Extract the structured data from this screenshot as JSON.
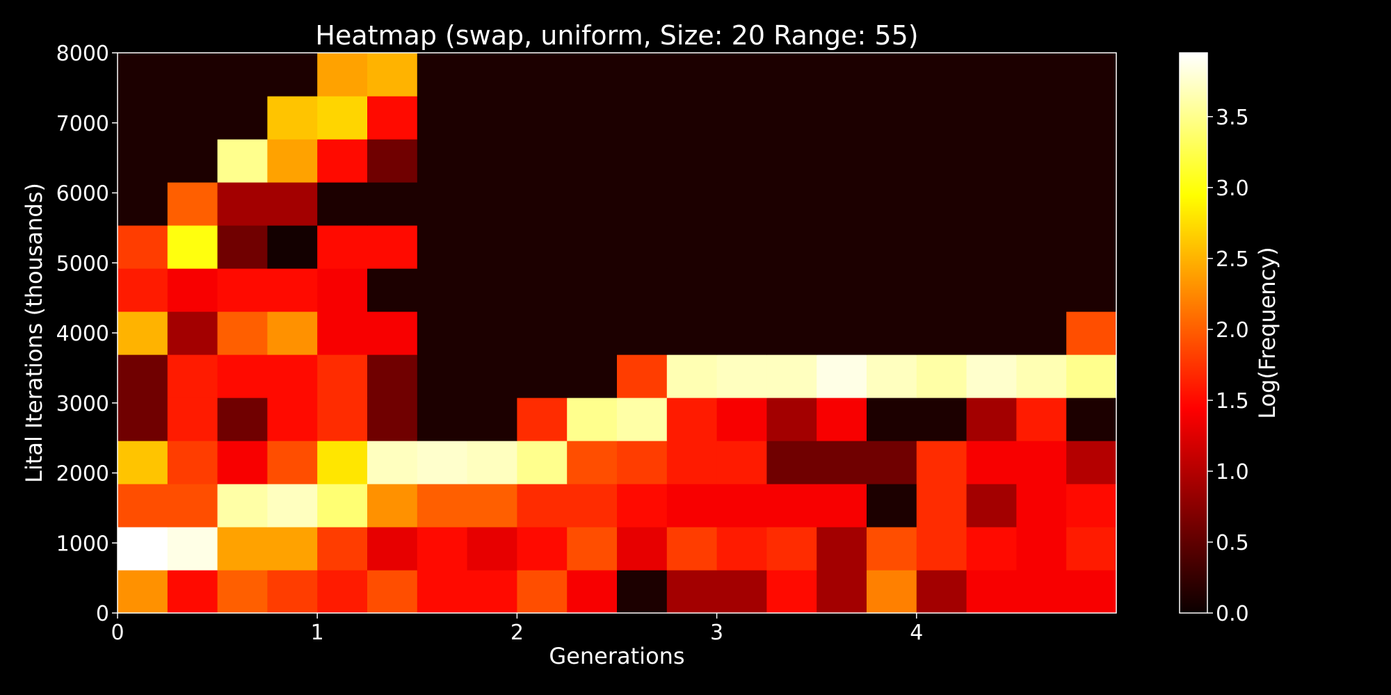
{
  "chart_data": {
    "type": "heatmap",
    "title": "Heatmap (swap, uniform, Size: 20 Range: 55)",
    "xlabel": "Generations",
    "ylabel": "Lital Iterations (thousands)",
    "colorbar_label": "Log(Frequency)",
    "colormap": "hot",
    "x_edges": [
      0,
      0.25,
      0.5,
      0.75,
      1.0,
      1.25,
      1.5,
      1.75,
      2.0,
      2.25,
      2.5,
      2.75,
      3.0,
      3.25,
      3.5,
      3.75,
      4.0,
      4.25,
      4.5,
      4.75,
      5.0
    ],
    "xlim": [
      0,
      5.0
    ],
    "ylim": [
      0,
      8000
    ],
    "n_y_bins": 13,
    "x_ticks": [
      0,
      1,
      2,
      3,
      4
    ],
    "y_ticks": [
      0,
      1000,
      2000,
      3000,
      4000,
      5000,
      6000,
      7000,
      8000
    ],
    "clim": [
      0,
      3.95
    ],
    "colorbar_ticks": [
      "0.0",
      "0.5",
      "1.0",
      "1.5",
      "2.0",
      "2.5",
      "3.0",
      "3.5"
    ],
    "colorbar_tick_values": [
      0.0,
      0.5,
      1.0,
      1.5,
      2.0,
      2.5,
      3.0,
      3.5
    ],
    "values_rows_bottom_to_top": [
      [
        2.3,
        1.5,
        2.0,
        1.8,
        1.6,
        1.9,
        1.5,
        1.5,
        1.9,
        1.4,
        0.1,
        0.9,
        0.9,
        1.5,
        0.9,
        2.2,
        0.9,
        1.4,
        1.4,
        1.4
      ],
      [
        3.95,
        3.85,
        2.4,
        2.4,
        1.8,
        1.3,
        1.5,
        1.3,
        1.5,
        1.9,
        1.3,
        1.8,
        1.6,
        1.7,
        0.9,
        1.9,
        1.7,
        1.5,
        1.4,
        1.6
      ],
      [
        1.9,
        1.9,
        3.6,
        3.7,
        3.4,
        2.3,
        2.0,
        2.0,
        1.7,
        1.7,
        1.5,
        1.4,
        1.4,
        1.4,
        1.4,
        0.1,
        1.7,
        0.9,
        1.4,
        1.5
      ],
      [
        2.6,
        1.8,
        1.4,
        1.9,
        2.8,
        3.7,
        3.75,
        3.7,
        3.5,
        1.9,
        1.8,
        1.6,
        1.6,
        0.6,
        0.6,
        0.6,
        1.7,
        1.4,
        1.4,
        1.0
      ],
      [
        0.6,
        1.6,
        0.6,
        1.5,
        1.7,
        0.6,
        0.1,
        0.1,
        1.7,
        3.5,
        3.6,
        1.6,
        1.4,
        0.9,
        1.4,
        0.1,
        0.1,
        0.9,
        1.6,
        0.1
      ],
      [
        0.6,
        1.6,
        1.5,
        1.5,
        1.7,
        0.6,
        0.1,
        0.1,
        0.1,
        0.1,
        1.8,
        3.65,
        3.7,
        3.7,
        3.85,
        3.7,
        3.6,
        3.75,
        3.65,
        3.5
      ],
      [
        2.5,
        0.9,
        2.0,
        2.3,
        1.4,
        1.4,
        0.1,
        0.1,
        0.1,
        0.1,
        0.1,
        0.1,
        0.1,
        0.1,
        0.1,
        0.1,
        0.1,
        0.1,
        0.1,
        1.9
      ],
      [
        1.6,
        1.4,
        1.5,
        1.5,
        1.4,
        0.1,
        0.1,
        0.1,
        0.1,
        0.1,
        0.1,
        0.1,
        0.1,
        0.1,
        0.1,
        0.1,
        0.1,
        0.1,
        0.1,
        0.1
      ],
      [
        1.8,
        3.0,
        0.6,
        0.05,
        1.5,
        1.5,
        0.1,
        0.1,
        0.1,
        0.1,
        0.1,
        0.1,
        0.1,
        0.1,
        0.1,
        0.1,
        0.1,
        0.1,
        0.1,
        0.1
      ],
      [
        0.1,
        2.0,
        0.9,
        0.9,
        0.1,
        0.1,
        0.1,
        0.1,
        0.1,
        0.1,
        0.1,
        0.1,
        0.1,
        0.1,
        0.1,
        0.1,
        0.1,
        0.1,
        0.1,
        0.1
      ],
      [
        0.1,
        0.1,
        3.5,
        2.4,
        1.5,
        0.6,
        0.1,
        0.1,
        0.1,
        0.1,
        0.1,
        0.1,
        0.1,
        0.1,
        0.1,
        0.1,
        0.1,
        0.1,
        0.1,
        0.1
      ],
      [
        0.1,
        0.1,
        0.1,
        2.6,
        2.7,
        1.5,
        0.1,
        0.1,
        0.1,
        0.1,
        0.1,
        0.1,
        0.1,
        0.1,
        0.1,
        0.1,
        0.1,
        0.1,
        0.1,
        0.1
      ],
      [
        0.1,
        0.1,
        0.1,
        0.1,
        2.4,
        2.5,
        0.1,
        0.1,
        0.1,
        0.1,
        0.1,
        0.1,
        0.1,
        0.1,
        0.1,
        0.1,
        0.1,
        0.1,
        0.1,
        0.1
      ]
    ]
  }
}
